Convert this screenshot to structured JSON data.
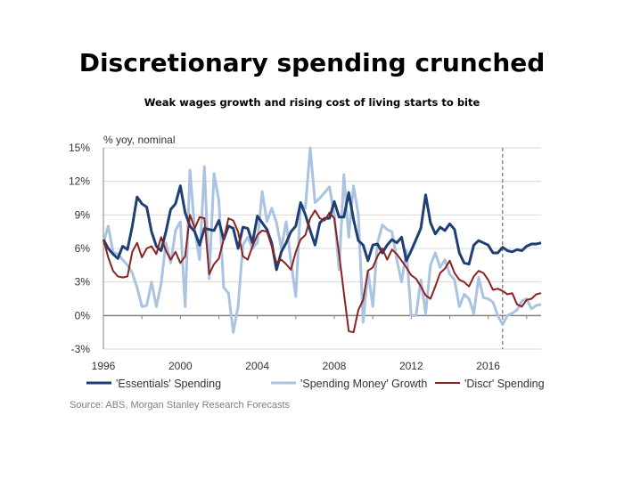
{
  "title": "Discretionary spending crunched",
  "subtitle": "Weak wages growth and rising cost of living starts to bite",
  "source": "Source: ABS, Morgan Stanley Research Forecasts",
  "chart_data": {
    "type": "line",
    "ylabel": "% yoy, nominal",
    "ylim": [
      -3,
      15
    ],
    "yticks": [
      "15%",
      "12%",
      "9%",
      "6%",
      "3%",
      "0%",
      "-3%"
    ],
    "ytick_values": [
      15,
      12,
      9,
      6,
      3,
      0,
      -3
    ],
    "xticks": [
      "1996",
      "2000",
      "2004",
      "2008",
      "2012",
      "2016"
    ],
    "xtick_values": [
      1996,
      2000,
      2004,
      2008,
      2012,
      2016
    ],
    "xlim": [
      1996,
      2018.75
    ],
    "grid": true,
    "forecast_marker_x": 2016.75,
    "legend_position": "bottom",
    "x": [
      1996,
      1996.25,
      1996.5,
      1996.75,
      1997,
      1997.25,
      1997.5,
      1997.75,
      1998,
      1998.25,
      1998.5,
      1998.75,
      1999,
      1999.25,
      1999.5,
      1999.75,
      2000,
      2000.25,
      2000.5,
      2000.75,
      2001,
      2001.25,
      2001.5,
      2001.75,
      2002,
      2002.25,
      2002.5,
      2002.75,
      2003,
      2003.25,
      2003.5,
      2003.75,
      2004,
      2004.25,
      2004.5,
      2004.75,
      2005,
      2005.25,
      2005.5,
      2005.75,
      2006,
      2006.25,
      2006.5,
      2006.75,
      2007,
      2007.25,
      2007.5,
      2007.75,
      2008,
      2008.25,
      2008.5,
      2008.75,
      2009,
      2009.25,
      2009.5,
      2009.75,
      2010,
      2010.25,
      2010.5,
      2010.75,
      2011,
      2011.25,
      2011.5,
      2011.75,
      2012,
      2012.25,
      2012.5,
      2012.75,
      2013,
      2013.25,
      2013.5,
      2013.75,
      2014,
      2014.25,
      2014.5,
      2014.75,
      2015,
      2015.25,
      2015.5,
      2015.75,
      2016,
      2016.25,
      2016.5,
      2016.75,
      2017,
      2017.25,
      2017.5,
      2017.75,
      2018,
      2018.25,
      2018.5,
      2018.75
    ],
    "series": [
      {
        "name": "'Essentials' Spending",
        "color": "#1f3f73",
        "values": [
          6.8,
          6.0,
          5.5,
          5.1,
          6.2,
          5.9,
          8.0,
          10.6,
          10.0,
          9.7,
          7.5,
          6.2,
          5.8,
          7.5,
          9.5,
          10.0,
          11.6,
          9.2,
          8.0,
          7.5,
          6.3,
          7.8,
          7.7,
          7.6,
          8.5,
          6.8,
          8.0,
          7.8,
          6.0,
          7.9,
          7.8,
          6.5,
          8.9,
          8.3,
          7.7,
          6.5,
          4.1,
          5.7,
          6.5,
          7.5,
          8.0,
          10.1,
          9.0,
          7.6,
          6.3,
          8.3,
          8.7,
          8.7,
          10.2,
          8.8,
          8.8,
          11.0,
          8.6,
          6.7,
          6.3,
          4.9,
          6.3,
          6.4,
          5.6,
          6.3,
          6.8,
          6.5,
          7.0,
          4.9,
          5.8,
          6.8,
          7.8,
          10.8,
          8.3,
          7.3,
          7.9,
          7.6,
          8.2,
          7.7,
          5.6,
          4.7,
          4.6,
          6.3,
          6.7,
          6.5,
          6.3,
          5.6,
          5.6,
          6.1,
          5.8,
          5.7,
          5.9,
          5.8,
          6.2,
          6.4,
          6.4,
          6.5
        ]
      },
      {
        "name": "'Spending Money' Growth",
        "color": "#a9c3e0",
        "values": [
          6.5,
          8.0,
          5.7,
          5.5,
          5.0,
          4.5,
          3.8,
          2.5,
          0.8,
          0.9,
          3.0,
          0.8,
          2.8,
          6.5,
          4.7,
          7.6,
          8.4,
          0.8,
          13.0,
          7.6,
          5.0,
          13.3,
          3.3,
          12.7,
          10.3,
          2.5,
          2.0,
          -1.5,
          0.8,
          6.3,
          7.0,
          6.0,
          6.5,
          11.1,
          8.4,
          9.6,
          8.3,
          6.0,
          8.4,
          4.8,
          1.7,
          10.0,
          9.6,
          15.0,
          10.1,
          10.5,
          11.0,
          11.5,
          9.0,
          4.1,
          12.6,
          7.0,
          11.6,
          9.0,
          -0.6,
          4.0,
          0.8,
          6.5,
          8.1,
          7.7,
          7.5,
          5.0,
          3.0,
          5.8,
          0.0,
          0.0,
          3.2,
          0.2,
          4.5,
          5.6,
          4.3,
          5.0,
          3.7,
          3.2,
          0.8,
          1.9,
          1.5,
          0.2,
          3.4,
          1.6,
          1.5,
          1.2,
          0.0,
          -0.8,
          0.0,
          0.2,
          0.5,
          1.3,
          1.5,
          0.6,
          0.9,
          1.0
        ]
      },
      {
        "name": "'Discr' Spending",
        "color": "#8b2323",
        "values": [
          6.8,
          5.2,
          4.0,
          3.5,
          3.4,
          3.5,
          5.7,
          6.5,
          5.2,
          6.0,
          6.2,
          5.5,
          7.0,
          5.8,
          5.0,
          5.7,
          4.7,
          5.3,
          9.0,
          7.8,
          8.8,
          8.7,
          3.7,
          4.6,
          5.1,
          6.8,
          8.7,
          8.5,
          7.5,
          5.3,
          5.0,
          6.2,
          7.2,
          7.6,
          7.5,
          6.2,
          4.7,
          5.0,
          4.6,
          4.1,
          5.7,
          6.8,
          7.2,
          8.7,
          9.4,
          8.7,
          8.5,
          9.2,
          8.7,
          5.5,
          2.0,
          -1.4,
          -1.5,
          0.5,
          1.4,
          4.0,
          4.3,
          5.3,
          6.0,
          5.0,
          5.9,
          5.5,
          4.9,
          4.3,
          3.6,
          3.3,
          2.6,
          1.8,
          1.5,
          2.6,
          3.8,
          4.2,
          4.9,
          3.8,
          3.2,
          3.0,
          2.6,
          3.5,
          4.0,
          3.8,
          3.2,
          2.3,
          2.4,
          2.2,
          1.9,
          2.0,
          1.0,
          0.8,
          1.4,
          1.5,
          1.9,
          2.0
        ]
      }
    ]
  }
}
